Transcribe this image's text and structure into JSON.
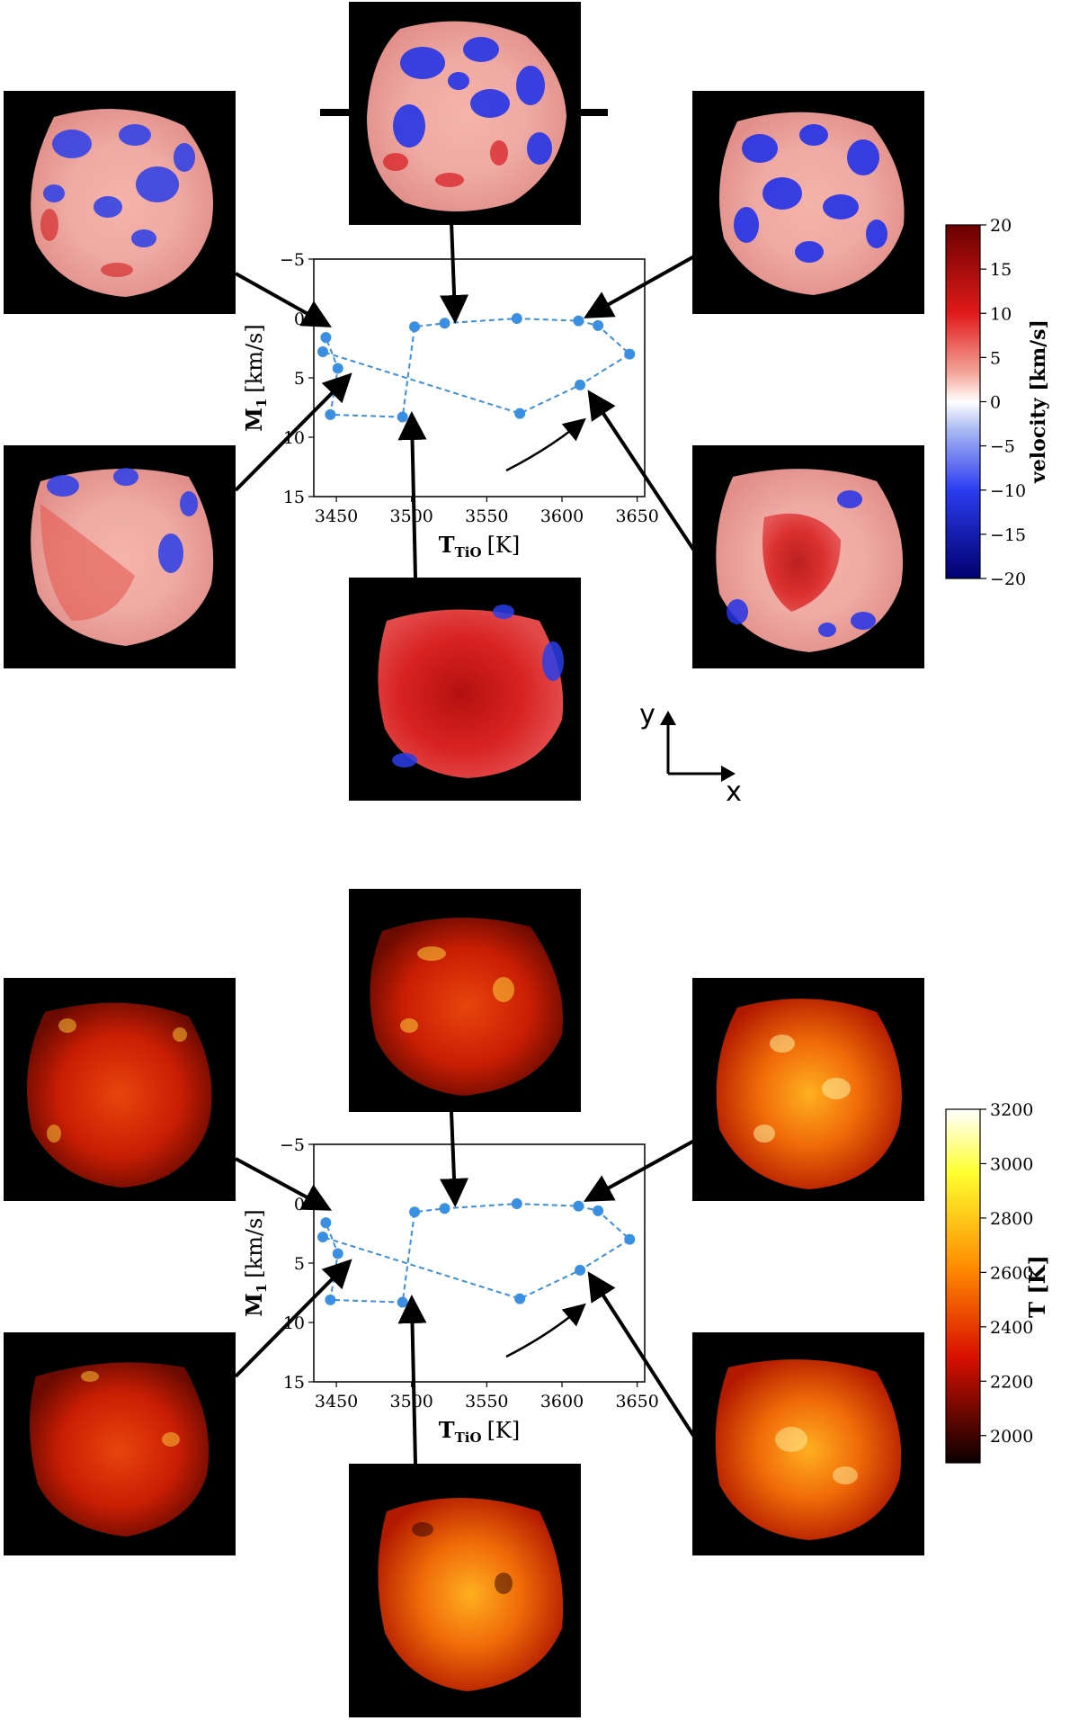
{
  "chart_data": [
    {
      "type": "line",
      "panel": "top",
      "map_quantity": "velocity",
      "x": [
        3441,
        3443,
        3451,
        3446,
        3494,
        3502,
        3522,
        3570,
        3611,
        3624,
        3645,
        3612,
        3572
      ],
      "y": [
        2.8,
        1.6,
        4.2,
        8.1,
        8.3,
        0.7,
        0.4,
        0.0,
        0.2,
        0.6,
        3.0,
        5.6,
        8.0
      ],
      "xlabel": "T",
      "xlabel_sub": "TiO",
      "xlabel_unit": "[K]",
      "ylabel": "M",
      "ylabel_sub": "1",
      "ylabel_unit": "[km/s]",
      "xlim": [
        3435,
        3655
      ],
      "ylim": [
        15,
        -5
      ],
      "xticks": [
        "3450",
        "3500",
        "3550",
        "3600",
        "3650"
      ],
      "yticks": [
        "−5",
        "0",
        "5",
        "10",
        "15"
      ],
      "line_color": "#3a8fe0",
      "colorbar": {
        "label": "velocity [km/s]",
        "ticks": [
          "20",
          "15",
          "10",
          "5",
          "0",
          "−5",
          "−10",
          "−15",
          "−20"
        ],
        "colormap": "seismic-reversed",
        "range": [
          -20,
          20
        ]
      },
      "axes_indicator": {
        "x": "x",
        "y": "y"
      }
    },
    {
      "type": "line",
      "panel": "bottom",
      "map_quantity": "temperature",
      "x": [
        3441,
        3443,
        3451,
        3446,
        3494,
        3502,
        3522,
        3570,
        3611,
        3624,
        3645,
        3612,
        3572
      ],
      "y": [
        2.8,
        1.6,
        4.2,
        8.1,
        8.3,
        0.7,
        0.4,
        0.0,
        0.2,
        0.6,
        3.0,
        5.6,
        8.0
      ],
      "xlabel": "T",
      "xlabel_sub": "TiO",
      "xlabel_unit": "[K]",
      "ylabel": "M",
      "ylabel_sub": "1",
      "ylabel_unit": "[km/s]",
      "xlim": [
        3435,
        3655
      ],
      "ylim": [
        15,
        -5
      ],
      "xticks": [
        "3450",
        "3500",
        "3550",
        "3600",
        "3650"
      ],
      "yticks": [
        "−5",
        "0",
        "5",
        "10",
        "15"
      ],
      "line_color": "#3a8fe0",
      "colorbar": {
        "label": "T [K]",
        "ticks": [
          "3200",
          "3000",
          "2800",
          "2600",
          "2400",
          "2200",
          "2000"
        ],
        "colormap": "hot",
        "range": [
          1900,
          3200
        ]
      }
    }
  ]
}
